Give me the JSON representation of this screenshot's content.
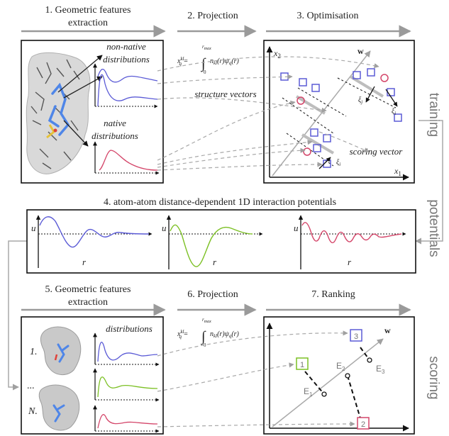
{
  "sections": {
    "s1": "1. Geometric features",
    "s1b": "extraction",
    "s2": "2. Projection",
    "s3": "3. Optimisation",
    "s4": "4. atom-atom distance-dependent 1D interaction potentials",
    "s5": "5. Geometric features",
    "s5b": "extraction",
    "s6": "6. Projection",
    "s7": "7. Ranking"
  },
  "side_labels": {
    "training": "training",
    "potentials": "potentials",
    "scoring": "scoring"
  },
  "panel1": {
    "nonnative_1": "non-native",
    "nonnative_2": "distributions",
    "native_1": "native",
    "native_2": "distributions"
  },
  "projection": {
    "lhs": "x",
    "lhs_sub": "q",
    "lhs_sup": "kl",
    "upper": "r",
    "upper_sub": "max",
    "lower": "0",
    "integrand": "n",
    "integrand_sub": "kl",
    "integrand_rest": "(r)ψ",
    "psi_sub": "q",
    "tail": "(r)"
  },
  "optimisation": {
    "structure_vectors": "structure vectors",
    "scoring_vector": "scoring vector",
    "x2": "x",
    "x2_sub": "2",
    "x1": "x",
    "x1_sub": "1",
    "w": "w",
    "xi_j": "ξ",
    "xi_j_sub": "j",
    "xi_i": "ξ",
    "xi_i_sub": "i"
  },
  "potentials_panel": {
    "u": "u",
    "r": "r"
  },
  "panel5": {
    "distributions": "distributions",
    "item1": "1.",
    "dots": "...",
    "itemN": "N."
  },
  "ranking": {
    "w": "w",
    "b1": "1",
    "b2": "2",
    "b3": "3",
    "e1": "E",
    "e1_sub": "1",
    "e2": "E",
    "e2_sub": "2",
    "e3": "E",
    "e3_sub": "3"
  },
  "colors": {
    "blue": "#5b5bd6",
    "red": "#d4466a",
    "green": "#7cc024",
    "arrow_gray": "#9a9a9a",
    "frame": "#111111"
  }
}
